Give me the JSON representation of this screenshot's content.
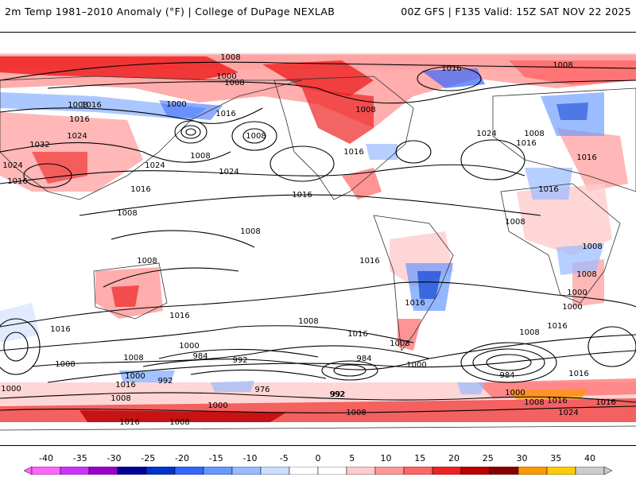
{
  "header": {
    "left_title": "2m Temp 1981–2010 Anomaly (°F) | College of DuPage NEXLAB",
    "right_title": "00Z GFS | F135 Valid: 15Z SAT NOV 22 2025"
  },
  "isobar_labels": [
    {
      "text": "1008",
      "id": "iso-1"
    },
    {
      "text": "1000",
      "id": "iso-2"
    },
    {
      "text": "1008",
      "id": "iso-3"
    },
    {
      "text": "1016",
      "id": "iso-4"
    },
    {
      "text": "1008",
      "id": "iso-5"
    },
    {
      "text": "1016",
      "id": "iso-6"
    },
    {
      "text": "1024",
      "id": "iso-7"
    },
    {
      "text": "1032",
      "id": "iso-8"
    },
    {
      "text": "1024",
      "id": "iso-9"
    },
    {
      "text": "1016",
      "id": "iso-10"
    },
    {
      "text": "1000",
      "id": "iso-11"
    },
    {
      "text": "1016",
      "id": "iso-12"
    },
    {
      "text": "1008",
      "id": "iso-13"
    },
    {
      "text": "1008",
      "id": "iso-14"
    },
    {
      "text": "1024",
      "id": "iso-15"
    },
    {
      "text": "1024",
      "id": "iso-16"
    },
    {
      "text": "1016",
      "id": "iso-17"
    },
    {
      "text": "1016",
      "id": "iso-18"
    },
    {
      "text": "1008",
      "id": "iso-19"
    },
    {
      "text": "1008",
      "id": "iso-20"
    },
    {
      "text": "1008",
      "id": "iso-21"
    },
    {
      "text": "1016",
      "id": "iso-22"
    },
    {
      "text": "1016",
      "id": "iso-23"
    },
    {
      "text": "1008",
      "id": "iso-24"
    },
    {
      "text": "1016",
      "id": "iso-25"
    },
    {
      "text": "1024",
      "id": "iso-26"
    },
    {
      "text": "1016",
      "id": "iso-27"
    },
    {
      "text": "1008",
      "id": "iso-28"
    },
    {
      "text": "1016",
      "id": "iso-29"
    },
    {
      "text": "1016",
      "id": "iso-30"
    },
    {
      "text": "1008",
      "id": "iso-31"
    },
    {
      "text": "1008",
      "id": "iso-32"
    },
    {
      "text": "1008",
      "id": "iso-33"
    },
    {
      "text": "1000",
      "id": "iso-34"
    },
    {
      "text": "1016",
      "id": "iso-35"
    },
    {
      "text": "1016",
      "id": "iso-36"
    },
    {
      "text": "1016",
      "id": "iso-37"
    },
    {
      "text": "1008",
      "id": "iso-38"
    },
    {
      "text": "1016",
      "id": "iso-39"
    },
    {
      "text": "1008",
      "id": "iso-40"
    },
    {
      "text": "1016",
      "id": "iso-41"
    },
    {
      "text": "1000",
      "id": "iso-42"
    },
    {
      "text": "984",
      "id": "iso-43"
    },
    {
      "text": "992",
      "id": "iso-44"
    },
    {
      "text": "984",
      "id": "iso-45"
    },
    {
      "text": "1000",
      "id": "iso-46"
    },
    {
      "text": "1008",
      "id": "iso-47"
    },
    {
      "text": "1000",
      "id": "iso-48"
    },
    {
      "text": "992",
      "id": "iso-49"
    },
    {
      "text": "984",
      "id": "iso-50"
    },
    {
      "text": "1008",
      "id": "iso-51"
    },
    {
      "text": "1016",
      "id": "iso-52"
    },
    {
      "text": "1000",
      "id": "iso-53"
    },
    {
      "text": "1016",
      "id": "iso-54"
    },
    {
      "text": "992",
      "id": "iso-55"
    },
    {
      "text": "976",
      "id": "iso-56"
    },
    {
      "text": "992",
      "id": "iso-57"
    },
    {
      "text": "1008",
      "id": "iso-58"
    },
    {
      "text": "1008",
      "id": "iso-59"
    },
    {
      "text": "1000",
      "id": "iso-60"
    },
    {
      "text": "1008",
      "id": "iso-61"
    },
    {
      "text": "1016",
      "id": "iso-62"
    },
    {
      "text": "1024",
      "id": "iso-63"
    },
    {
      "text": "1008",
      "id": "iso-64"
    },
    {
      "text": "1000",
      "id": "iso-65"
    },
    {
      "text": "1016",
      "id": "iso-66"
    },
    {
      "text": "1016",
      "id": "iso-67"
    },
    {
      "text": "1008",
      "id": "iso-68"
    },
    {
      "text": "1008",
      "id": "iso-69"
    },
    {
      "text": "1000",
      "id": "iso-70"
    }
  ],
  "legend": {
    "ticks": [
      "-40",
      "-35",
      "-30",
      "-25",
      "-20",
      "-15",
      "-10",
      "-5",
      "0",
      "5",
      "10",
      "15",
      "20",
      "25",
      "30",
      "35",
      "40"
    ],
    "colors": [
      "#ff66ff",
      "#cc33ff",
      "#9900cc",
      "#000099",
      "#0033cc",
      "#3366ff",
      "#6699ff",
      "#99bbff",
      "#ccddff",
      "#ffffff",
      "#ffffff",
      "#ffcccc",
      "#ff9999",
      "#ff6666",
      "#ee2222",
      "#bb0000",
      "#880000",
      "#ff9900",
      "#ffcc00",
      "#cccccc"
    ]
  }
}
